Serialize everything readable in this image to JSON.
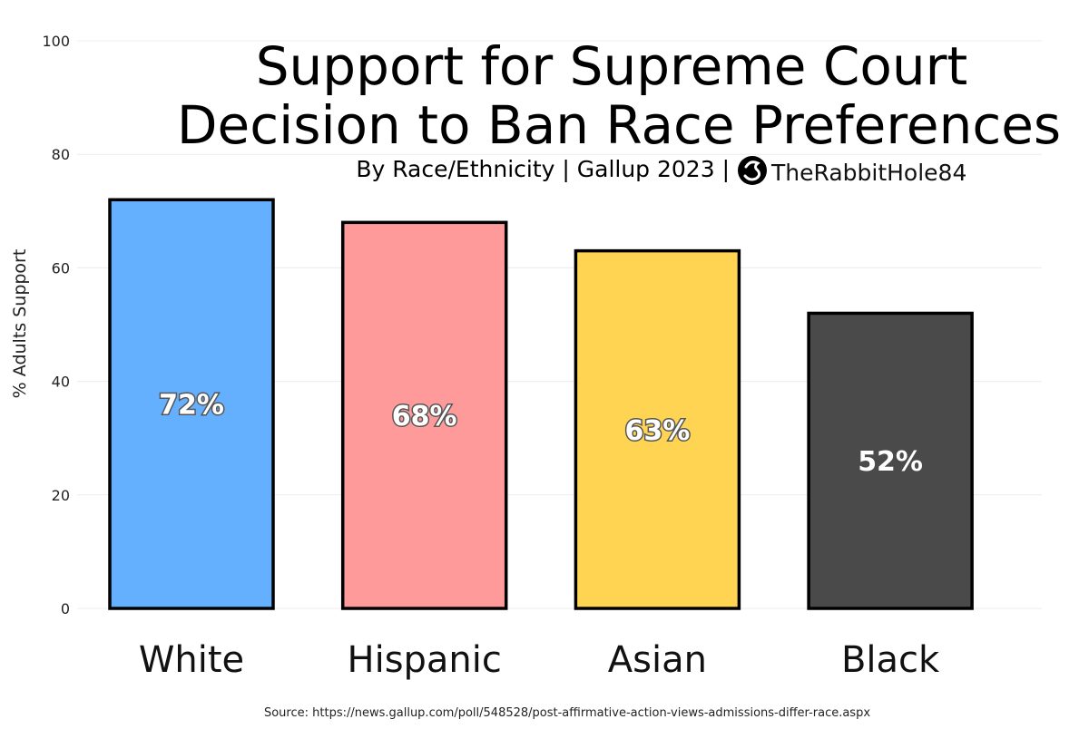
{
  "chart_data": {
    "type": "bar",
    "title_lines": [
      "Support for Supreme Court",
      "Decision to Ban Race Preferences"
    ],
    "subtitle": "By Race/Ethnicity | Gallup 2023 |",
    "brand": "TheRabbitHole84",
    "brand_icon": "rabbit-logo-icon",
    "ylabel": "% Adults Support",
    "xlabel": "",
    "categories": [
      "White",
      "Hispanic",
      "Asian",
      "Black"
    ],
    "values": [
      72,
      68,
      63,
      52
    ],
    "data_labels": [
      "72%",
      "68%",
      "63%",
      "52%"
    ],
    "colors": [
      "#64b0ff",
      "#ff9a9a",
      "#ffd452",
      "#4a4a4a"
    ],
    "ylim": [
      0,
      100
    ],
    "yticks": [
      0,
      20,
      40,
      60,
      80,
      100
    ],
    "ytick_labels": [
      "0",
      "20",
      "40",
      "60",
      "80",
      "100"
    ],
    "grid": true,
    "source": "Source: https://news.gallup.com/poll/548528/post-affirmative-action-views-admissions-differ-race.aspx"
  }
}
